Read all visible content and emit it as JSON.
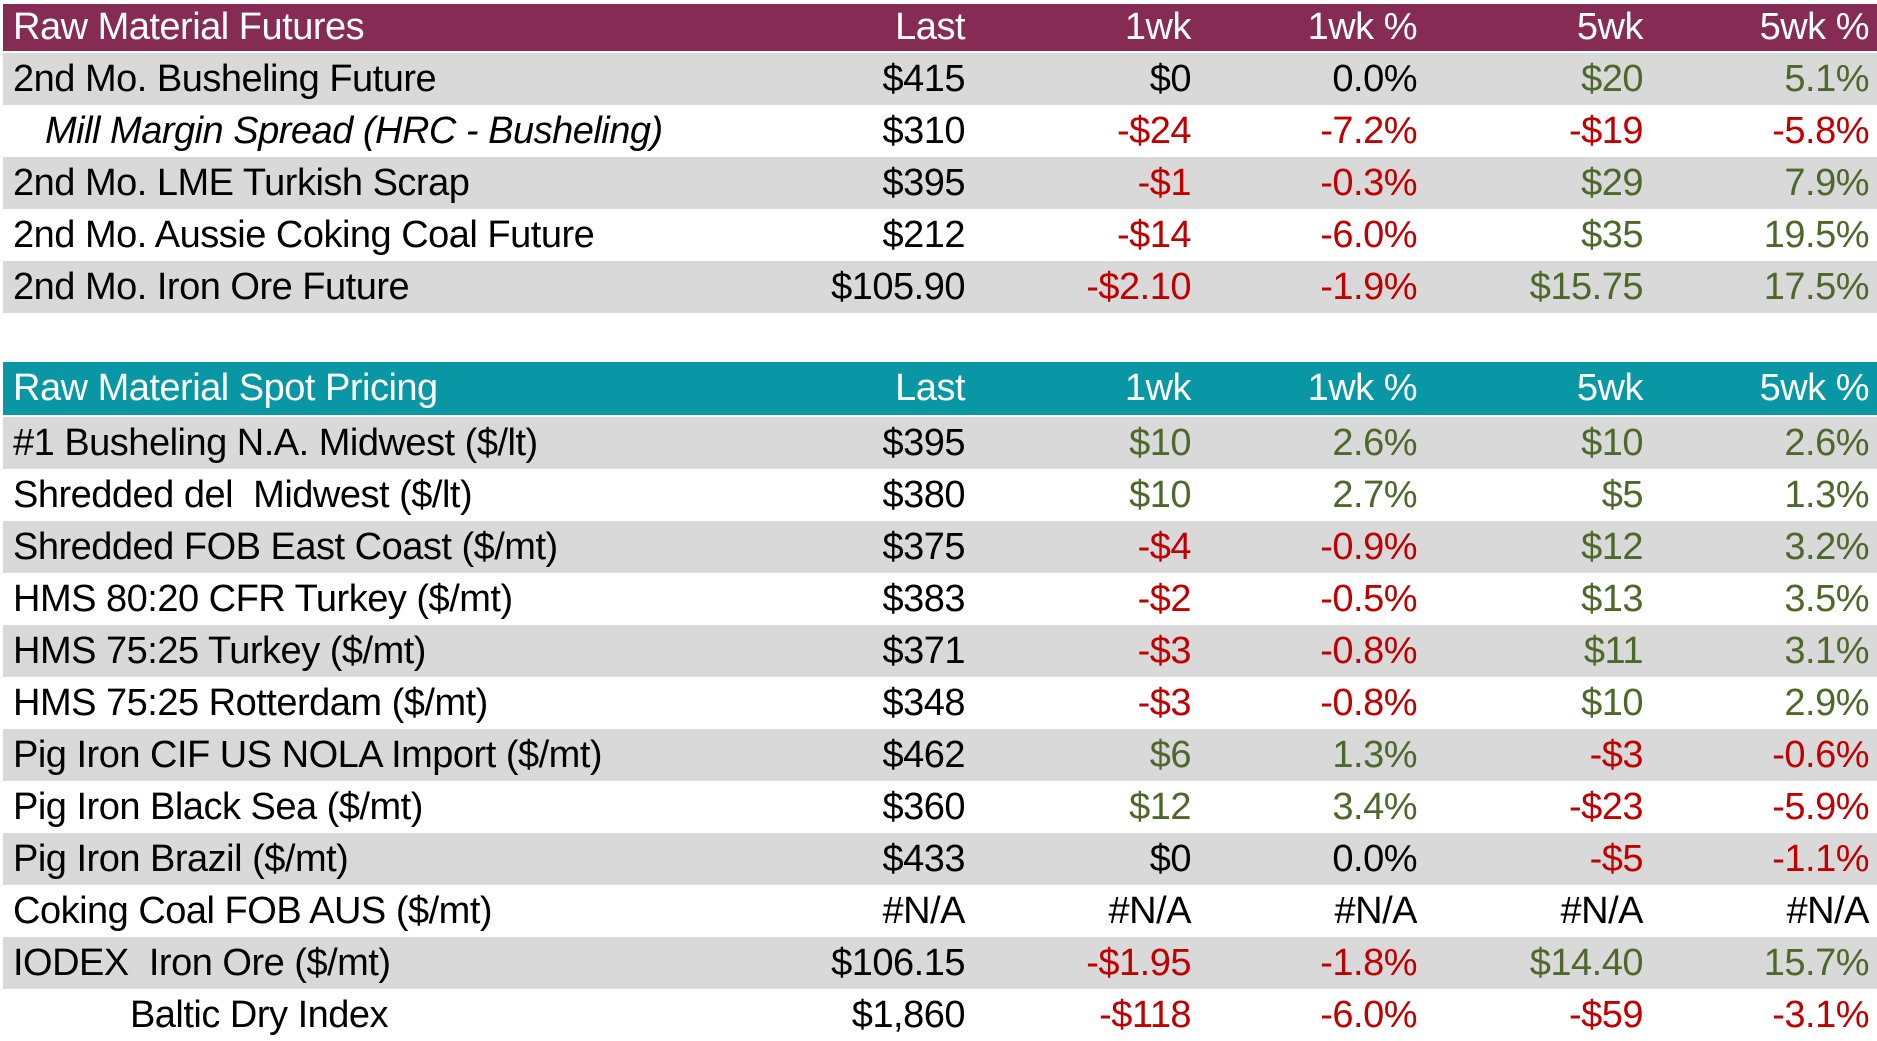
{
  "colors": {
    "futures_header_bg": "#862C54",
    "spot_header_bg": "#0997A6",
    "alt_row_bg": "#D9D9D9",
    "positive_text": "#4E672B",
    "negative_text": "#C00000",
    "neutral_text": "#000000",
    "header_text": "#FFFFFF"
  },
  "chart_data": [
    {
      "type": "table",
      "title": "Raw Material Futures",
      "columns": [
        "Last",
        "1wk",
        "1wk %",
        "5wk",
        "5wk %"
      ],
      "layout": {
        "header_bg": "#862C54",
        "alternating_rows": true,
        "first_data_row_shaded": true
      },
      "rows": [
        {
          "label": "2nd Mo. Busheling Future",
          "values": [
            {
              "t": "$415",
              "c": "flat"
            },
            {
              "t": "$0",
              "c": "flat"
            },
            {
              "t": "0.0%",
              "c": "flat"
            },
            {
              "t": "$20",
              "c": "pos"
            },
            {
              "t": "5.1%",
              "c": "pos"
            }
          ]
        },
        {
          "label": "Mill Margin Spread (HRC - Busheling)",
          "label_class": "indent-italic",
          "values": [
            {
              "t": "$310",
              "c": "flat"
            },
            {
              "t": "-$24",
              "c": "neg"
            },
            {
              "t": "-7.2%",
              "c": "neg"
            },
            {
              "t": "-$19",
              "c": "neg"
            },
            {
              "t": "-5.8%",
              "c": "neg"
            }
          ]
        },
        {
          "label": "2nd Mo. LME Turkish Scrap",
          "values": [
            {
              "t": "$395",
              "c": "flat"
            },
            {
              "t": "-$1",
              "c": "neg"
            },
            {
              "t": "-0.3%",
              "c": "neg"
            },
            {
              "t": "$29",
              "c": "pos"
            },
            {
              "t": "7.9%",
              "c": "pos"
            }
          ]
        },
        {
          "label": "2nd Mo. Aussie Coking Coal Future",
          "values": [
            {
              "t": "$212",
              "c": "flat"
            },
            {
              "t": "-$14",
              "c": "neg"
            },
            {
              "t": "-6.0%",
              "c": "neg"
            },
            {
              "t": "$35",
              "c": "pos"
            },
            {
              "t": "19.5%",
              "c": "pos"
            }
          ]
        },
        {
          "label": "2nd Mo. Iron Ore Future",
          "values": [
            {
              "t": "$105.90",
              "c": "flat"
            },
            {
              "t": "-$2.10",
              "c": "neg"
            },
            {
              "t": "-1.9%",
              "c": "neg"
            },
            {
              "t": "$15.75",
              "c": "pos"
            },
            {
              "t": "17.5%",
              "c": "pos"
            }
          ]
        }
      ]
    },
    {
      "type": "table",
      "title": "Raw Material Spot Pricing",
      "columns": [
        "Last",
        "1wk",
        "1wk %",
        "5wk",
        "5wk %"
      ],
      "layout": {
        "header_bg": "#0997A6",
        "alternating_rows": true,
        "first_data_row_shaded": true
      },
      "rows": [
        {
          "label": "#1 Busheling N.A. Midwest ($/lt)",
          "values": [
            {
              "t": "$395",
              "c": "flat"
            },
            {
              "t": "$10",
              "c": "pos"
            },
            {
              "t": "2.6%",
              "c": "pos"
            },
            {
              "t": "$10",
              "c": "pos"
            },
            {
              "t": "2.6%",
              "c": "pos"
            }
          ]
        },
        {
          "label": "Shredded del  Midwest ($/lt)",
          "values": [
            {
              "t": "$380",
              "c": "flat"
            },
            {
              "t": "$10",
              "c": "pos"
            },
            {
              "t": "2.7%",
              "c": "pos"
            },
            {
              "t": "$5",
              "c": "pos"
            },
            {
              "t": "1.3%",
              "c": "pos"
            }
          ]
        },
        {
          "label": "Shredded FOB East Coast ($/mt)",
          "values": [
            {
              "t": "$375",
              "c": "flat"
            },
            {
              "t": "-$4",
              "c": "neg"
            },
            {
              "t": "-0.9%",
              "c": "neg"
            },
            {
              "t": "$12",
              "c": "pos"
            },
            {
              "t": "3.2%",
              "c": "pos"
            }
          ]
        },
        {
          "label": "HMS 80:20 CFR Turkey ($/mt)",
          "values": [
            {
              "t": "$383",
              "c": "flat"
            },
            {
              "t": "-$2",
              "c": "neg"
            },
            {
              "t": "-0.5%",
              "c": "neg"
            },
            {
              "t": "$13",
              "c": "pos"
            },
            {
              "t": "3.5%",
              "c": "pos"
            }
          ]
        },
        {
          "label": "HMS 75:25 Turkey ($/mt)",
          "values": [
            {
              "t": "$371",
              "c": "flat"
            },
            {
              "t": "-$3",
              "c": "neg"
            },
            {
              "t": "-0.8%",
              "c": "neg"
            },
            {
              "t": "$11",
              "c": "pos"
            },
            {
              "t": "3.1%",
              "c": "pos"
            }
          ]
        },
        {
          "label": "HMS 75:25 Rotterdam ($/mt)",
          "values": [
            {
              "t": "$348",
              "c": "flat"
            },
            {
              "t": "-$3",
              "c": "neg"
            },
            {
              "t": "-0.8%",
              "c": "neg"
            },
            {
              "t": "$10",
              "c": "pos"
            },
            {
              "t": "2.9%",
              "c": "pos"
            }
          ]
        },
        {
          "label": "Pig Iron CIF US NOLA Import ($/mt)",
          "values": [
            {
              "t": "$462",
              "c": "flat"
            },
            {
              "t": "$6",
              "c": "pos"
            },
            {
              "t": "1.3%",
              "c": "pos"
            },
            {
              "t": "-$3",
              "c": "neg"
            },
            {
              "t": "-0.6%",
              "c": "neg"
            }
          ]
        },
        {
          "label": "Pig Iron Black Sea ($/mt)",
          "values": [
            {
              "t": "$360",
              "c": "flat"
            },
            {
              "t": "$12",
              "c": "pos"
            },
            {
              "t": "3.4%",
              "c": "pos"
            },
            {
              "t": "-$23",
              "c": "neg"
            },
            {
              "t": "-5.9%",
              "c": "neg"
            }
          ]
        },
        {
          "label": "Pig Iron Brazil ($/mt)",
          "values": [
            {
              "t": "$433",
              "c": "flat"
            },
            {
              "t": "$0",
              "c": "flat"
            },
            {
              "t": "0.0%",
              "c": "flat"
            },
            {
              "t": "-$5",
              "c": "neg"
            },
            {
              "t": "-1.1%",
              "c": "neg"
            }
          ]
        },
        {
          "label": "Coking Coal FOB AUS ($/mt)",
          "values": [
            {
              "t": "#N/A",
              "c": "flat"
            },
            {
              "t": "#N/A",
              "c": "flat"
            },
            {
              "t": "#N/A",
              "c": "flat"
            },
            {
              "t": "#N/A",
              "c": "flat"
            },
            {
              "t": "#N/A",
              "c": "flat"
            }
          ]
        },
        {
          "label": "IODEX  Iron Ore ($/mt)",
          "values": [
            {
              "t": "$106.15",
              "c": "flat"
            },
            {
              "t": "-$1.95",
              "c": "neg"
            },
            {
              "t": "-1.8%",
              "c": "neg"
            },
            {
              "t": "$14.40",
              "c": "pos"
            },
            {
              "t": "15.7%",
              "c": "pos"
            }
          ]
        },
        {
          "label": "Baltic Dry Index",
          "label_class": "center",
          "values": [
            {
              "t": "$1,860",
              "c": "flat"
            },
            {
              "t": "-$118",
              "c": "neg"
            },
            {
              "t": "-6.0%",
              "c": "neg"
            },
            {
              "t": "-$59",
              "c": "neg"
            },
            {
              "t": "-3.1%",
              "c": "neg"
            }
          ]
        }
      ]
    }
  ]
}
